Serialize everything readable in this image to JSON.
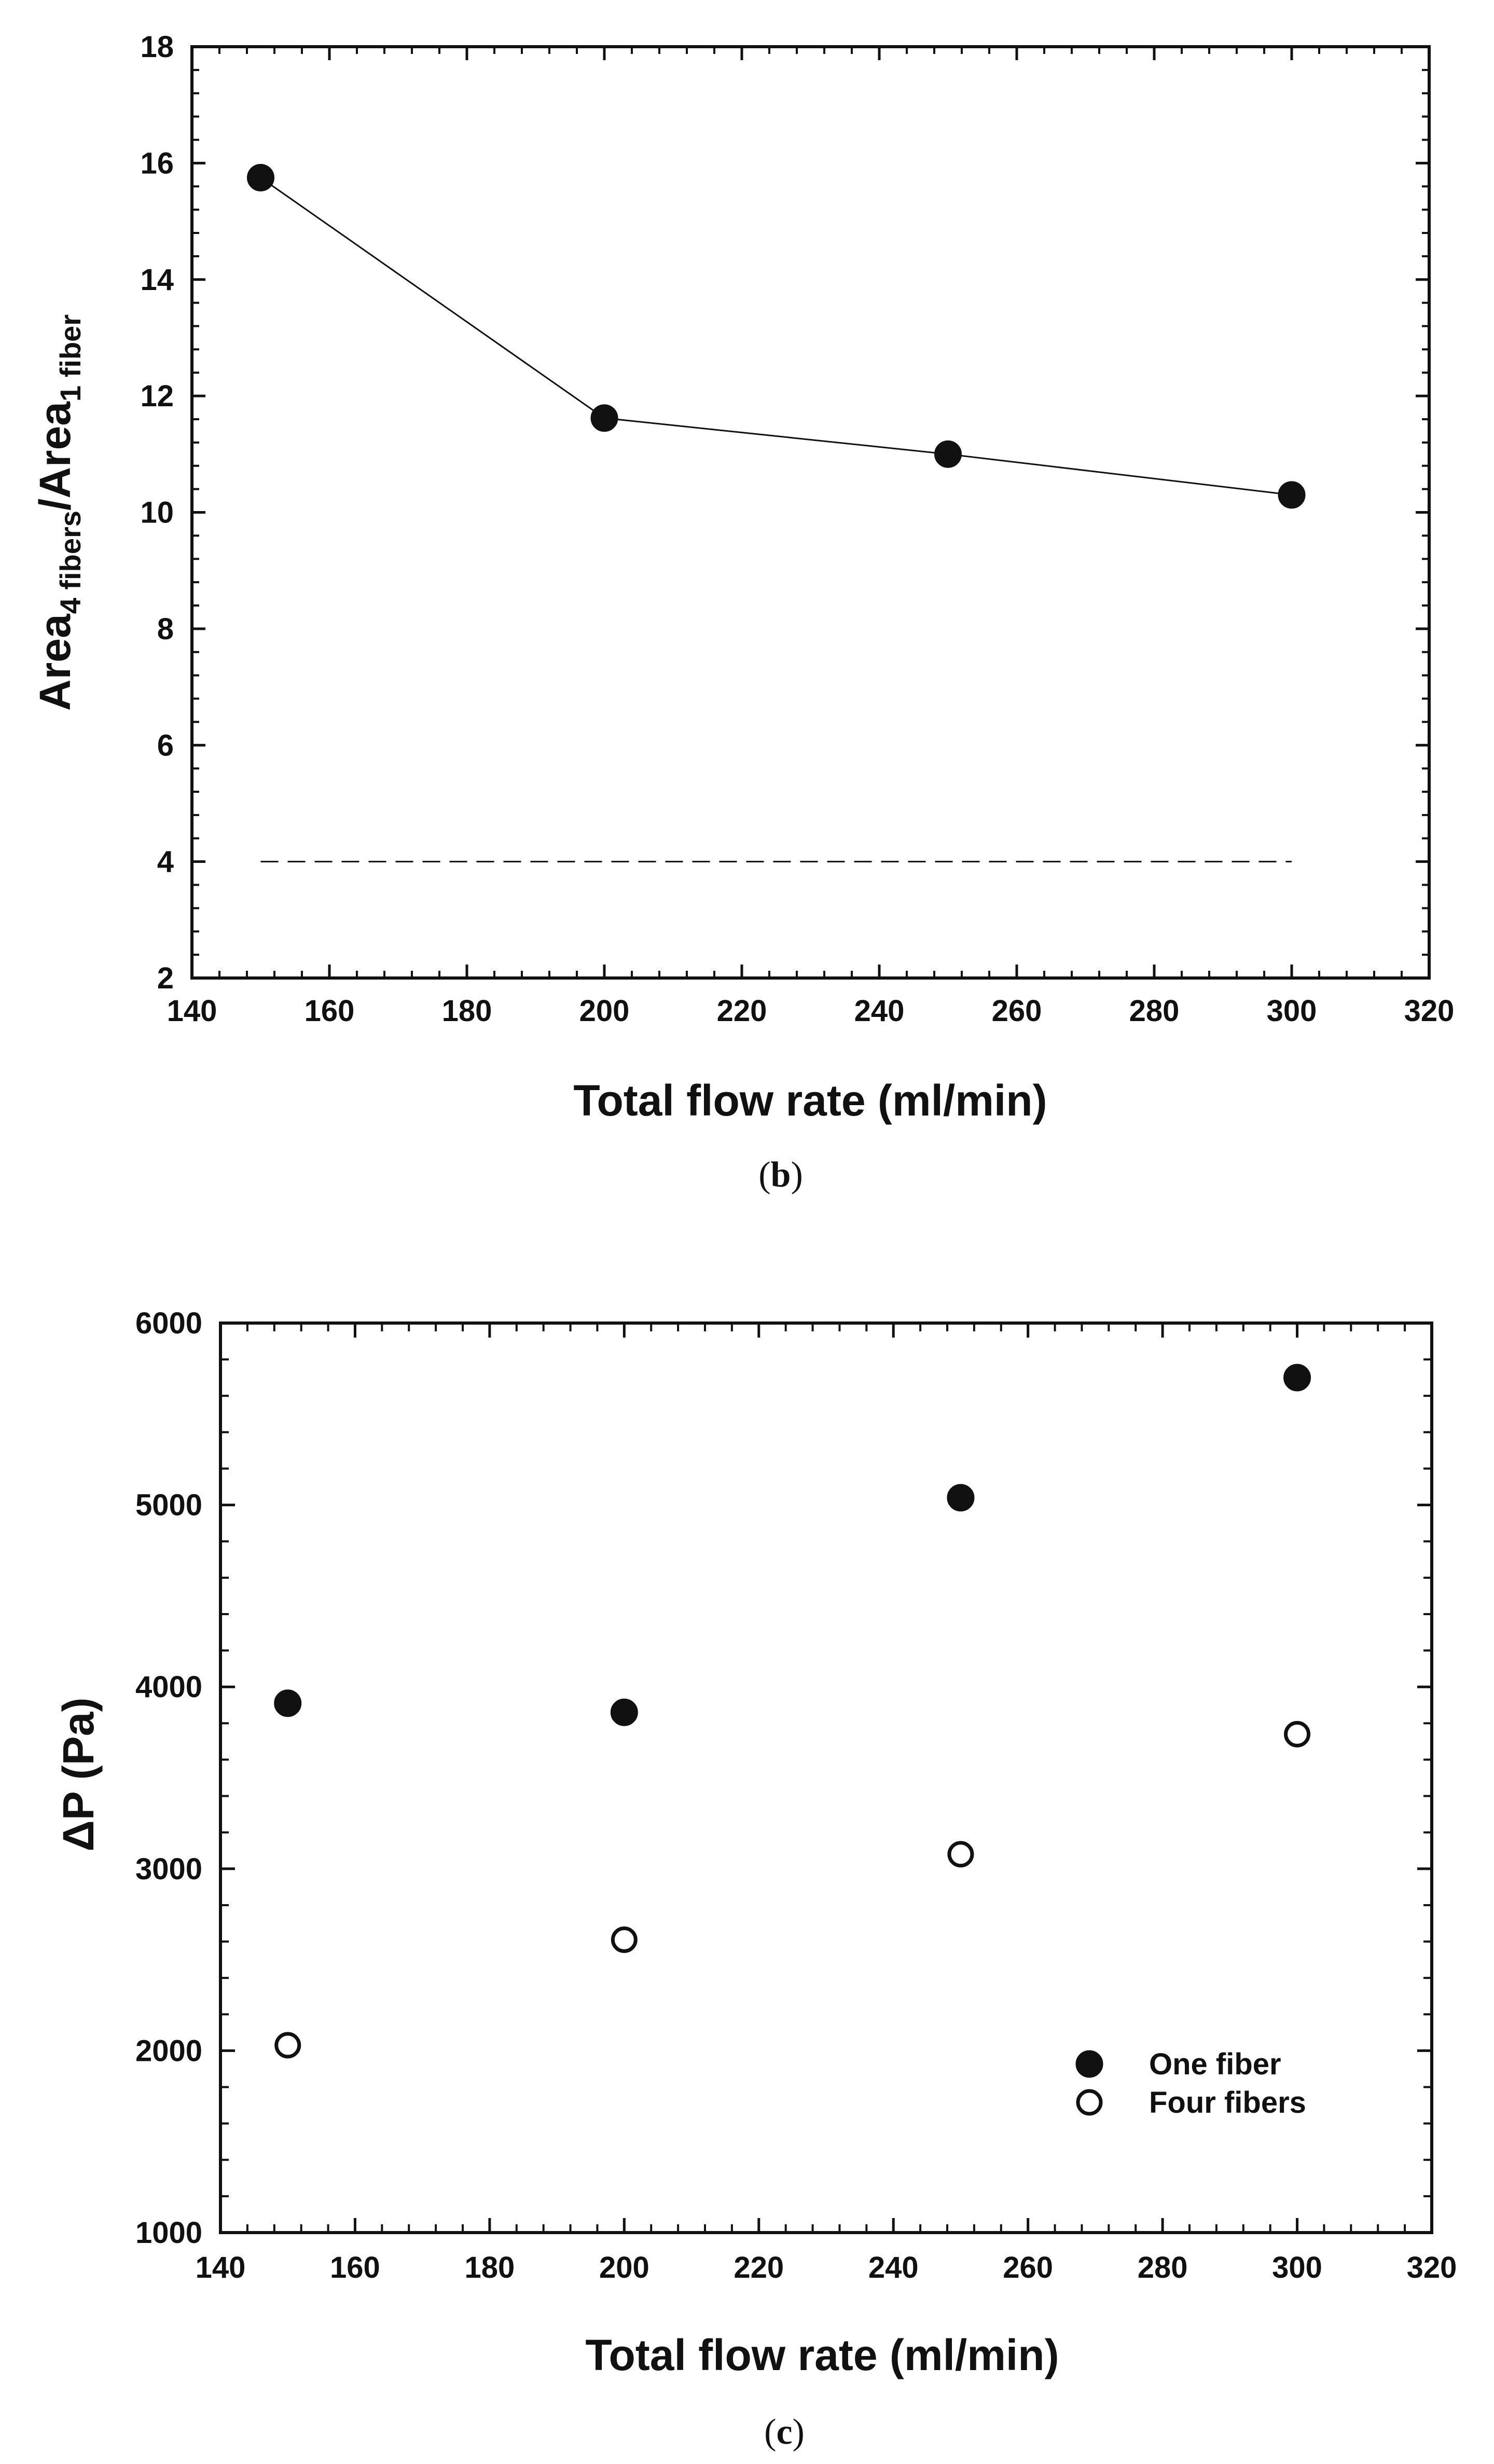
{
  "chart_data": [
    {
      "type": "line",
      "panel_label": "b",
      "xlabel": "Total flow rate (ml/min)",
      "ylabel": {
        "base1": "Area",
        "sub1": "4 fibers",
        "mid": "/Area",
        "sub2": "1 fiber"
      },
      "xlim": [
        140,
        320
      ],
      "ylim": [
        2,
        18
      ],
      "x_ticks": [
        140,
        160,
        180,
        200,
        220,
        240,
        260,
        280,
        300,
        320
      ],
      "y_ticks": [
        2,
        4,
        6,
        8,
        10,
        12,
        14,
        16,
        18
      ],
      "series": [
        {
          "x": [
            150,
            200,
            250,
            300
          ],
          "y": [
            15.75,
            11.62,
            11.0,
            10.3
          ],
          "marker": "filled-circle",
          "line": "solid",
          "color": "#111111"
        },
        {
          "x": [
            150,
            300
          ],
          "y": [
            4,
            4
          ],
          "marker": "none",
          "line": "dashed",
          "color": "#111111"
        }
      ],
      "grid": false
    },
    {
      "type": "scatter",
      "panel_label": "c",
      "xlabel": "Total flow rate (ml/min)",
      "ylabel": "ΔP (Pa)",
      "xlim": [
        140,
        320
      ],
      "ylim": [
        1000,
        6000
      ],
      "x_ticks": [
        140,
        160,
        180,
        200,
        220,
        240,
        260,
        280,
        300,
        320
      ],
      "y_ticks": [
        1000,
        2000,
        3000,
        4000,
        5000,
        6000
      ],
      "series": [
        {
          "name": "One fiber",
          "x": [
            150,
            200,
            250,
            300
          ],
          "y": [
            3910,
            3860,
            5040,
            5700
          ],
          "marker": "filled-circle",
          "color": "#111111"
        },
        {
          "name": "Four fibers",
          "x": [
            150,
            200,
            250,
            300
          ],
          "y": [
            2030,
            2610,
            3080,
            3740
          ],
          "marker": "open-circle",
          "color": "#111111"
        }
      ],
      "legend_position": "bottom-right",
      "grid": false
    }
  ]
}
